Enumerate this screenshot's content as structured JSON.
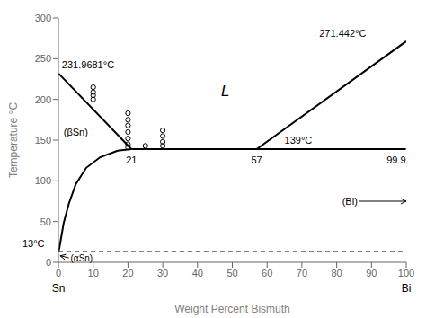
{
  "chart_data": {
    "type": "line",
    "xlabel": "Weight Percent Bismuth",
    "ylabel": "Temperature °C",
    "xlim": [
      0,
      100
    ],
    "ylim": [
      0,
      300
    ],
    "xticks": [
      0,
      10,
      20,
      30,
      40,
      50,
      60,
      70,
      80,
      90,
      100
    ],
    "yticks": [
      0,
      50,
      100,
      150,
      200,
      250,
      300
    ],
    "grid": false,
    "series": [
      {
        "type": "line",
        "color": "#000000",
        "line_style": "solid",
        "x": [
          0,
          21
        ],
        "values": [
          231.9681,
          139
        ]
      },
      {
        "type": "line",
        "color": "#000000",
        "line_style": "solid",
        "x": [
          57,
          100
        ],
        "values": [
          139,
          271.442
        ]
      },
      {
        "type": "line",
        "color": "#000000",
        "line_style": "solid",
        "x": [
          0,
          0.3,
          0.7,
          1.5,
          3,
          5,
          8,
          12,
          17,
          21
        ],
        "values": [
          13,
          18,
          28,
          48,
          72,
          96,
          116,
          129,
          137,
          139
        ]
      },
      {
        "type": "line",
        "color": "#000000",
        "line_style": "solid",
        "x": [
          21,
          99.9
        ],
        "values": [
          139,
          139
        ]
      },
      {
        "type": "line",
        "color": "#000000",
        "line_style": "dashed",
        "x": [
          0,
          100
        ],
        "values": [
          13,
          13
        ]
      },
      {
        "type": "scatter",
        "color": "#000000",
        "marker": "circle",
        "x": [
          10,
          10,
          10,
          10,
          20,
          20,
          20,
          20,
          20,
          20,
          20,
          30,
          30,
          30,
          30,
          25
        ],
        "values": [
          215,
          209,
          205,
          200,
          183,
          175,
          168,
          160,
          152,
          145,
          141,
          162,
          155,
          148,
          143,
          143
        ]
      }
    ],
    "annotations": [
      {
        "text": "231.9681°C",
        "x": 1.0,
        "y": 236
      },
      {
        "text": "271.442°C",
        "x": 75,
        "y": 275
      },
      {
        "text": "139°C",
        "x": 65,
        "y": 143
      },
      {
        "text": "13°C",
        "x": -4,
        "y": 16
      },
      {
        "text": "L",
        "x": 48,
        "y": 210
      },
      {
        "text": "(βSn)",
        "x": 1.5,
        "y": 160
      },
      {
        "text": "(αSn)",
        "x": 3.5,
        "y": 5,
        "arrow": [
          0.5,
          8
        ]
      },
      {
        "text": "(Bi)",
        "x": 86,
        "y": 75,
        "arrow": [
          100,
          75
        ]
      },
      {
        "text": "21",
        "x": 21,
        "y": 132
      },
      {
        "text": "57",
        "x": 57,
        "y": 132
      },
      {
        "text": "99.9",
        "x": 99.9,
        "y": 132
      },
      {
        "text": "Sn",
        "x": 0
      },
      {
        "text": "Bi",
        "x": 100
      }
    ]
  }
}
